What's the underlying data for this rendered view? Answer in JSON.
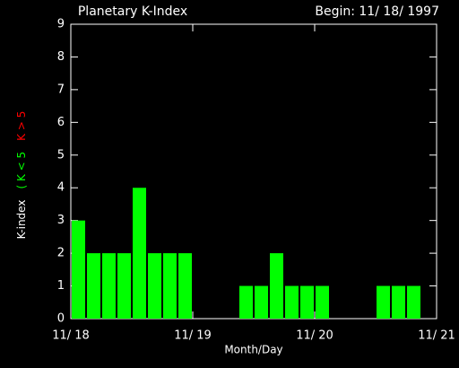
{
  "chart_data": {
    "type": "bar",
    "title": "Planetary K-Index",
    "subtitle": "Begin: 11/ 18/ 1997",
    "xlabel": "Month/Day",
    "ylabel": [
      {
        "text": "K-index",
        "color": "#ffffff"
      },
      {
        "text": "( K < 5",
        "color": "#00ff00"
      },
      {
        "text": "K > 5",
        "color": "#ff0000"
      }
    ],
    "x": [
      0,
      0.125,
      0.25,
      0.375,
      0.5,
      0.625,
      0.75,
      0.875,
      1,
      1.125,
      1.25,
      1.375,
      1.5,
      1.625,
      1.75,
      1.875,
      2,
      2.125,
      2.25,
      2.375,
      2.5,
      2.625,
      2.75,
      2.875
    ],
    "values": [
      3,
      2,
      2,
      2,
      4,
      2,
      2,
      2,
      null,
      null,
      null,
      1,
      1,
      2,
      1,
      1,
      1,
      null,
      null,
      null,
      1,
      1,
      1,
      null
    ],
    "color": "#00ff00",
    "xlim": [
      0,
      3
    ],
    "xticks": [
      {
        "value": 0,
        "label": "11/ 18"
      },
      {
        "value": 1,
        "label": "11/ 19"
      },
      {
        "value": 2,
        "label": "11/ 20"
      },
      {
        "value": 3,
        "label": "11/ 21"
      }
    ],
    "ylim": [
      0,
      9
    ],
    "yticks": [
      0,
      1,
      2,
      3,
      4,
      5,
      6,
      7,
      8,
      9
    ]
  }
}
